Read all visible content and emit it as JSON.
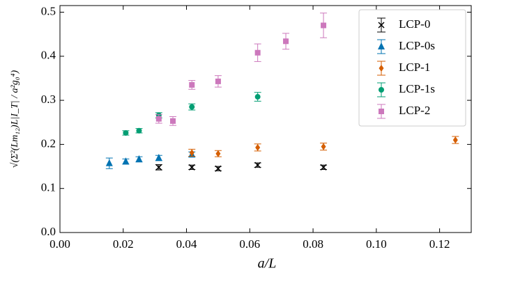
{
  "chart_data": {
    "type": "scatter",
    "x_label": "a/L",
    "y_label": "√(Σ²(Lm₁₂)L|I_T| / a²g₀⁴)",
    "xlim": [
      0,
      0.13
    ],
    "ylim": [
      0,
      0.515
    ],
    "xticks": [
      {
        "value": 0,
        "label": "0.00"
      },
      {
        "value": 0.02,
        "label": "0.02"
      },
      {
        "value": 0.04,
        "label": "0.04"
      },
      {
        "value": 0.06,
        "label": "0.06"
      },
      {
        "value": 0.08,
        "label": "0.08"
      },
      {
        "value": 0.1,
        "label": "0.10"
      },
      {
        "value": 0.12,
        "label": "0.12"
      }
    ],
    "yticks": [
      {
        "value": 0,
        "label": "0.0"
      },
      0.1,
      0.2,
      0.3,
      0.4,
      0.5
    ],
    "legend": "upper right",
    "series": [
      {
        "name": "LCP-0",
        "color": "#000000",
        "marker": "x",
        "x": [
          0.03125,
          0.0417,
          0.05,
          0.0625,
          0.0833
        ],
        "values": [
          0.148,
          0.148,
          0.145,
          0.153,
          0.148
        ],
        "errors": [
          0.006,
          0.005,
          0.005,
          0.005,
          0.005
        ]
      },
      {
        "name": "LCP-0s",
        "color": "#0173b2",
        "marker": "triangle",
        "x": [
          0.0156,
          0.0208,
          0.025,
          0.03125,
          0.0417
        ],
        "values": [
          0.157,
          0.161,
          0.166,
          0.169,
          0.177
        ],
        "errors": [
          0.012,
          0.006,
          0.006,
          0.006,
          0.006
        ]
      },
      {
        "name": "LCP-1",
        "color": "#d55e00",
        "marker": "diamond",
        "x": [
          0.0417,
          0.05,
          0.0625,
          0.0833,
          0.125
        ],
        "values": [
          0.181,
          0.179,
          0.193,
          0.195,
          0.21
        ],
        "errors": [
          0.008,
          0.007,
          0.008,
          0.008,
          0.008
        ]
      },
      {
        "name": "LCP-1s",
        "color": "#029e73",
        "marker": "circle",
        "x": [
          0.0208,
          0.025,
          0.03125,
          0.0417,
          0.0625
        ],
        "values": [
          0.226,
          0.231,
          0.266,
          0.285,
          0.308
        ],
        "errors": [
          0.005,
          0.005,
          0.006,
          0.007,
          0.01
        ]
      },
      {
        "name": "LCP-2",
        "color": "#cc78bc",
        "marker": "square",
        "x": [
          0.03125,
          0.0357,
          0.0417,
          0.05,
          0.0625,
          0.0714,
          0.0833
        ],
        "values": [
          0.258,
          0.253,
          0.335,
          0.343,
          0.408,
          0.434,
          0.47
        ],
        "errors": [
          0.01,
          0.01,
          0.01,
          0.013,
          0.02,
          0.018,
          0.028
        ]
      }
    ]
  }
}
